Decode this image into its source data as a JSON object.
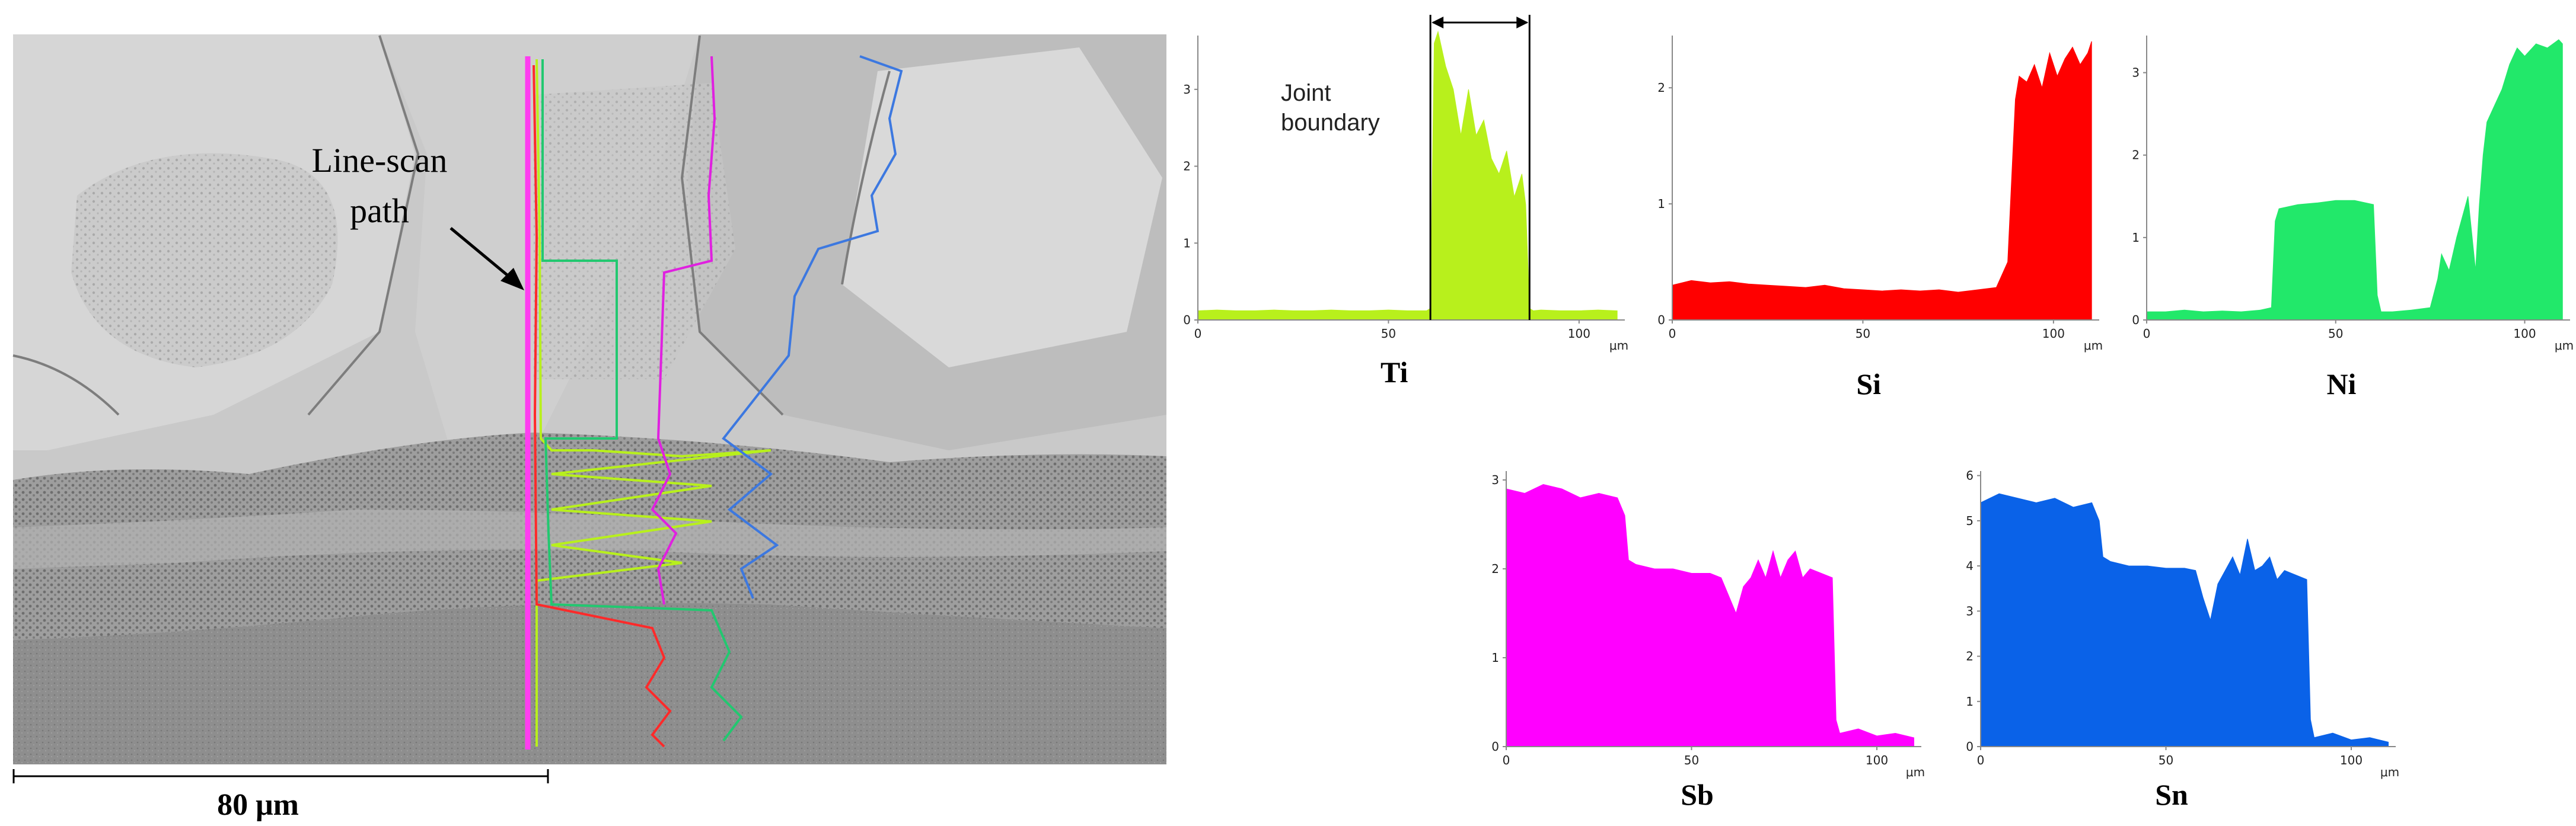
{
  "micrograph": {
    "annotation_line1": "Line-scan",
    "annotation_line2": "path",
    "scale_bar_label": "80 μm",
    "path_color": "#ff3df0"
  },
  "chart_data": [
    {
      "type": "area",
      "element": "Ti",
      "color": "#b8f01c",
      "xlabel": "Ti",
      "unit": "μm",
      "xlim": [
        0,
        112
      ],
      "ylim": [
        0,
        3.7
      ],
      "xticks": [
        0,
        50,
        100
      ],
      "yticks": [
        0,
        1,
        2,
        3
      ],
      "annotation": [
        "Joint",
        "boundary"
      ],
      "boundary": [
        61,
        87
      ],
      "x": [
        0,
        5,
        10,
        15,
        20,
        25,
        30,
        35,
        40,
        45,
        50,
        55,
        60,
        61,
        62,
        63,
        65,
        67,
        69,
        71,
        73,
        75,
        77,
        79,
        81,
        83,
        85,
        86,
        87,
        88,
        90,
        95,
        100,
        105,
        110
      ],
      "y": [
        0.12,
        0.13,
        0.12,
        0.12,
        0.13,
        0.12,
        0.12,
        0.13,
        0.12,
        0.12,
        0.13,
        0.12,
        0.12,
        0.15,
        3.6,
        3.75,
        3.3,
        3.0,
        2.4,
        3.0,
        2.4,
        2.6,
        2.1,
        1.9,
        2.2,
        1.6,
        1.9,
        1.5,
        0.15,
        0.12,
        0.13,
        0.12,
        0.12,
        0.13,
        0.12
      ]
    },
    {
      "type": "area",
      "element": "Si",
      "color": "#ff0000",
      "xlabel": "Si",
      "unit": "μm",
      "xlim": [
        0,
        112
      ],
      "ylim": [
        0,
        2.45
      ],
      "xticks": [
        0,
        50,
        100
      ],
      "yticks": [
        0,
        1,
        2
      ],
      "x": [
        0,
        5,
        10,
        15,
        20,
        25,
        30,
        35,
        40,
        45,
        50,
        55,
        60,
        65,
        70,
        75,
        80,
        85,
        88,
        89,
        90,
        91,
        93,
        95,
        97,
        99,
        101,
        103,
        105,
        107,
        109,
        110
      ],
      "y": [
        0.3,
        0.34,
        0.32,
        0.33,
        0.31,
        0.3,
        0.29,
        0.28,
        0.3,
        0.27,
        0.26,
        0.25,
        0.26,
        0.25,
        0.26,
        0.24,
        0.26,
        0.28,
        0.5,
        1.2,
        1.9,
        2.1,
        2.05,
        2.2,
        2.0,
        2.3,
        2.1,
        2.25,
        2.35,
        2.2,
        2.3,
        2.4
      ]
    },
    {
      "type": "area",
      "element": "Ni",
      "color": "#22e86a",
      "xlabel": "Ni",
      "unit": "μm",
      "xlim": [
        0,
        112
      ],
      "ylim": [
        0,
        3.45
      ],
      "xticks": [
        0,
        50,
        100
      ],
      "yticks": [
        0,
        1,
        2,
        3
      ],
      "x": [
        0,
        5,
        10,
        15,
        20,
        25,
        30,
        33,
        34,
        35,
        40,
        45,
        50,
        55,
        60,
        61,
        62,
        65,
        70,
        75,
        77,
        78,
        80,
        82,
        85,
        87,
        88,
        89,
        90,
        92,
        94,
        96,
        98,
        100,
        103,
        106,
        109,
        110
      ],
      "y": [
        0.1,
        0.1,
        0.12,
        0.1,
        0.11,
        0.1,
        0.12,
        0.15,
        1.2,
        1.35,
        1.4,
        1.42,
        1.45,
        1.45,
        1.4,
        0.3,
        0.1,
        0.1,
        0.12,
        0.15,
        0.5,
        0.8,
        0.6,
        1.0,
        1.5,
        0.6,
        1.4,
        2.0,
        2.4,
        2.6,
        2.8,
        3.1,
        3.3,
        3.2,
        3.35,
        3.3,
        3.4,
        3.35
      ]
    },
    {
      "type": "area",
      "element": "Sb",
      "color": "#ff00ff",
      "xlabel": "Sb",
      "unit": "μm",
      "xlim": [
        0,
        112
      ],
      "ylim": [
        0,
        3.1
      ],
      "xticks": [
        0,
        50,
        100
      ],
      "yticks": [
        0,
        1,
        2,
        3
      ],
      "x": [
        0,
        5,
        10,
        15,
        20,
        25,
        30,
        32,
        33,
        35,
        40,
        45,
        50,
        55,
        58,
        60,
        62,
        64,
        66,
        68,
        70,
        72,
        74,
        76,
        78,
        80,
        82,
        85,
        88,
        89,
        90,
        95,
        100,
        105,
        110
      ],
      "y": [
        2.9,
        2.85,
        2.95,
        2.9,
        2.8,
        2.85,
        2.8,
        2.6,
        2.1,
        2.05,
        2.0,
        2.0,
        1.95,
        1.95,
        1.9,
        1.7,
        1.5,
        1.8,
        1.9,
        2.1,
        1.9,
        2.2,
        1.9,
        2.1,
        2.2,
        1.9,
        2.0,
        1.95,
        1.9,
        0.3,
        0.15,
        0.2,
        0.12,
        0.15,
        0.1
      ]
    },
    {
      "type": "area",
      "element": "Sn",
      "color": "#0a62e8",
      "xlabel": "Sn",
      "unit": "μm",
      "xlim": [
        0,
        112
      ],
      "ylim": [
        0,
        6.1
      ],
      "xticks": [
        0,
        50,
        100
      ],
      "yticks": [
        0,
        1,
        2,
        3,
        4,
        5,
        6
      ],
      "x": [
        0,
        5,
        10,
        15,
        20,
        25,
        30,
        32,
        33,
        35,
        40,
        45,
        50,
        55,
        58,
        60,
        62,
        64,
        66,
        68,
        70,
        72,
        74,
        76,
        78,
        80,
        82,
        85,
        88,
        89,
        90,
        95,
        100,
        105,
        110
      ],
      "y": [
        5.4,
        5.6,
        5.5,
        5.4,
        5.5,
        5.3,
        5.4,
        5.0,
        4.2,
        4.1,
        4.0,
        4.0,
        3.95,
        3.95,
        3.9,
        3.3,
        2.8,
        3.6,
        3.9,
        4.2,
        3.8,
        4.6,
        3.9,
        4.0,
        4.2,
        3.7,
        3.9,
        3.8,
        3.7,
        0.6,
        0.2,
        0.3,
        0.15,
        0.2,
        0.1
      ]
    }
  ]
}
